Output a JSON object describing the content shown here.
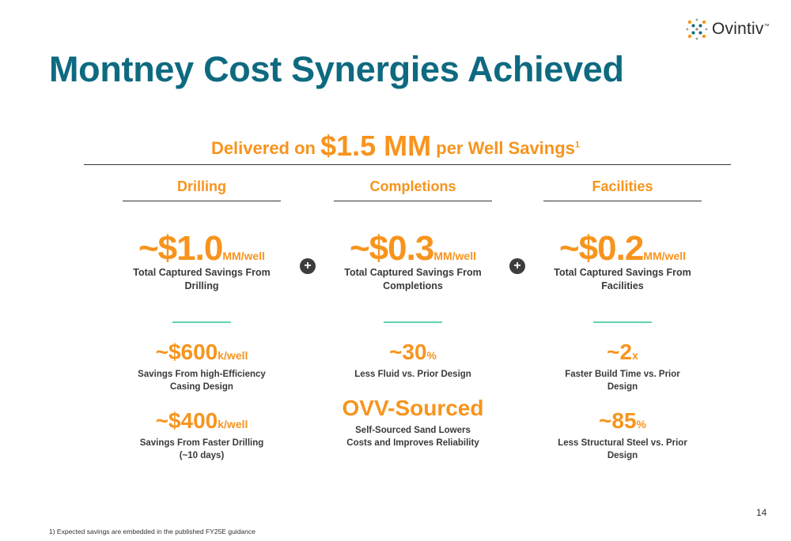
{
  "logo": {
    "name": "Ovintiv",
    "tm": "™"
  },
  "title": "Montney Cost Synergies Achieved",
  "headline": {
    "pre": "Delivered on ",
    "big": "$1.5 MM",
    "post": " per Well Savings",
    "sup": "1"
  },
  "columns": [
    {
      "heading": "Drilling",
      "main": {
        "value": "~$1.0",
        "unit": "MM/well",
        "desc": "Total Captured Savings From Drilling"
      },
      "metrics": [
        {
          "value": "~$600",
          "unit": "k/well",
          "desc": "Savings From high-Efficiency Casing Design"
        },
        {
          "value": "~$400",
          "unit": "k/well",
          "desc": "Savings From Faster Drilling (~10 days)"
        }
      ]
    },
    {
      "heading": "Completions",
      "main": {
        "value": "~$0.3",
        "unit": "MM/well",
        "desc": "Total Captured Savings From Completions"
      },
      "metrics": [
        {
          "value": "~30",
          "unit": "%",
          "desc": "Less Fluid vs. Prior Design"
        },
        {
          "value": "OVV-Sourced",
          "unit": "",
          "desc": "Self-Sourced Sand Lowers Costs and Improves Reliability"
        }
      ]
    },
    {
      "heading": "Facilities",
      "main": {
        "value": "~$0.2",
        "unit": "MM/well",
        "desc": "Total Captured Savings From Facilities"
      },
      "metrics": [
        {
          "value": "~2",
          "unit": "x",
          "desc": "Faster Build Time vs. Prior Design"
        },
        {
          "value": "~85",
          "unit": "%",
          "desc": "Less Structural Steel vs. Prior Design"
        }
      ]
    }
  ],
  "plus_symbol": "+",
  "page_number": "14",
  "footnote": "1) Expected savings are embedded in the published FY25E guidance",
  "colors": {
    "title": "#0e6a80",
    "accent": "#f7941d",
    "teal": "#5fd3b4",
    "text": "#3a3a3a"
  }
}
